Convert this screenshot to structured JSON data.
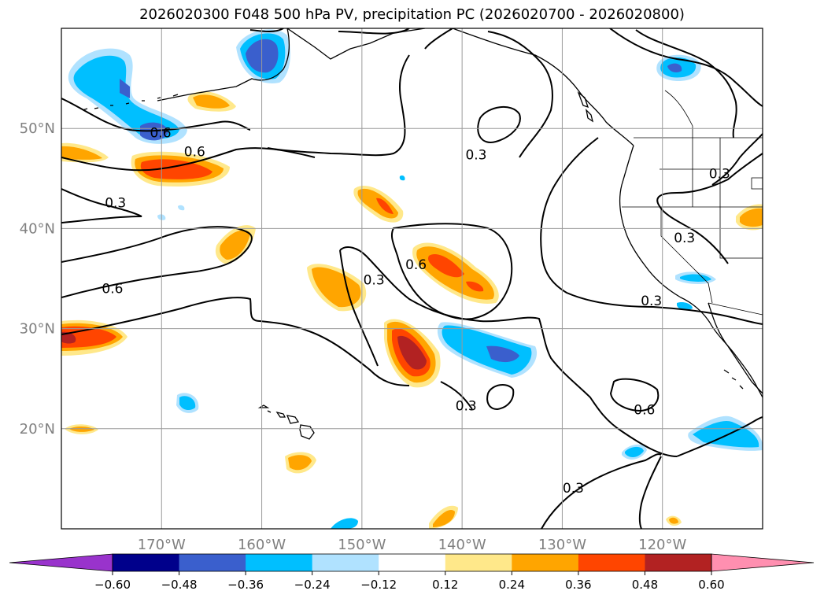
{
  "title": "2026020300 F048 500 hPa PV, precipitation PC (2026020700 - 2026020800)",
  "map": {
    "lon_range": [
      -180,
      -110
    ],
    "lat_range": [
      10,
      60
    ],
    "lat_ticks": [
      {
        "value": 20,
        "label": "20°N"
      },
      {
        "value": 30,
        "label": "30°N"
      },
      {
        "value": 40,
        "label": "40°N"
      },
      {
        "value": 50,
        "label": "50°N"
      }
    ],
    "lon_ticks": [
      {
        "value": -170,
        "label": "170°W"
      },
      {
        "value": -160,
        "label": "160°W"
      },
      {
        "value": -150,
        "label": "150°W"
      },
      {
        "value": -140,
        "label": "140°W"
      },
      {
        "value": -130,
        "label": "130°W"
      },
      {
        "value": -120,
        "label": "120°W"
      }
    ],
    "grid": true,
    "contour_labels": [
      {
        "text": "0.6",
        "lon": -170.1,
        "lat": 49.6
      },
      {
        "text": "0.6",
        "lon": -166.7,
        "lat": 47.7
      },
      {
        "text": "0.3",
        "lon": -174.6,
        "lat": 42.6
      },
      {
        "text": "0.6",
        "lon": -174.9,
        "lat": 34.0
      },
      {
        "text": "0.3",
        "lon": -138.6,
        "lat": 47.4
      },
      {
        "text": "0.3",
        "lon": -114.3,
        "lat": 45.5
      },
      {
        "text": "0.3",
        "lon": -117.8,
        "lat": 39.1
      },
      {
        "text": "0.6",
        "lon": -144.6,
        "lat": 36.4
      },
      {
        "text": "0.3",
        "lon": -148.8,
        "lat": 34.9
      },
      {
        "text": "0.3",
        "lon": -121.1,
        "lat": 32.8
      },
      {
        "text": "0.3",
        "lon": -139.6,
        "lat": 22.3
      },
      {
        "text": "0.6",
        "lon": -121.8,
        "lat": 21.9
      },
      {
        "text": "0.3",
        "lon": -128.9,
        "lat": 14.1
      }
    ]
  },
  "colorbar": {
    "levels": [
      -0.6,
      -0.48,
      -0.36,
      -0.24,
      -0.12,
      0.12,
      0.24,
      0.36,
      0.48,
      0.6
    ],
    "labels": [
      "−0.60",
      "−0.48",
      "−0.36",
      "−0.24",
      "−0.12",
      "0.12",
      "0.24",
      "0.36",
      "0.48",
      "0.60"
    ],
    "colors": [
      "#9933cc",
      "#00008b",
      "#3a5fcd",
      "#00bfff",
      "#b0e2ff",
      "#ffffff",
      "#ffe88a",
      "#ffa500",
      "#ff4500",
      "#b22222",
      "#ff8fb0"
    ]
  }
}
